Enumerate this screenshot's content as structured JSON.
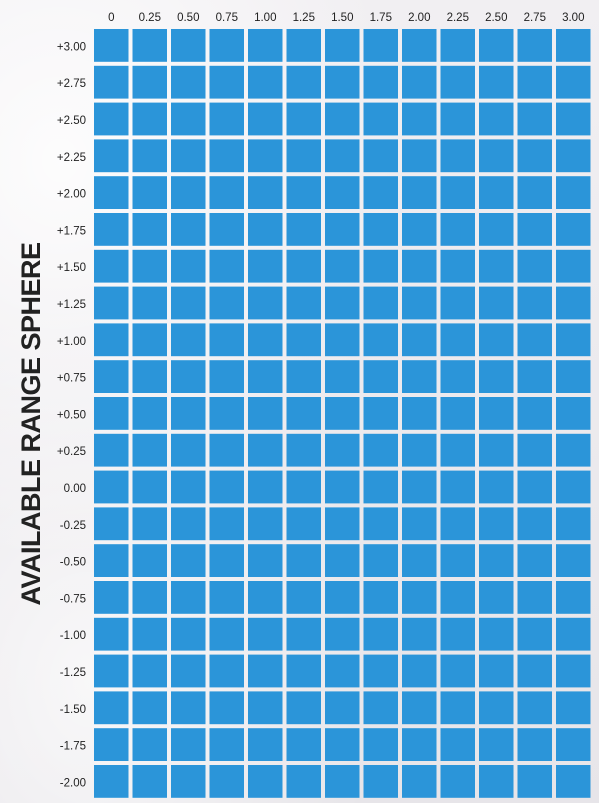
{
  "chart_data": {
    "type": "heatmap",
    "title": "",
    "ylabel": "AVAILABLE RANGE SPHERE",
    "xlabel": "",
    "x_tick_labels": [
      "0",
      "0.25",
      "0.50",
      "0.75",
      "1.00",
      "1.25",
      "1.50",
      "1.75",
      "2.00",
      "2.25",
      "2.50",
      "2.75",
      "3.00"
    ],
    "y_tick_labels": [
      "+3.00",
      "+2.75",
      "+2.50",
      "+2.25",
      "+2.00",
      "+1.75",
      "+1.50",
      "+1.25",
      "+1.00",
      "+0.75",
      "+0.50",
      "+0.25",
      "0.00",
      "-0.25",
      "-0.50",
      "-0.75",
      "-1.00",
      "-1.25",
      "-1.50",
      "-1.75",
      "-2.00"
    ],
    "x_range": [
      0,
      3.0
    ],
    "x_step": 0.25,
    "y_range": [
      -2.0,
      3.0
    ],
    "y_step": 0.25,
    "all_cells_available": true,
    "cell_color": "#2b95d9",
    "grid_line_color": "#ffffff"
  }
}
